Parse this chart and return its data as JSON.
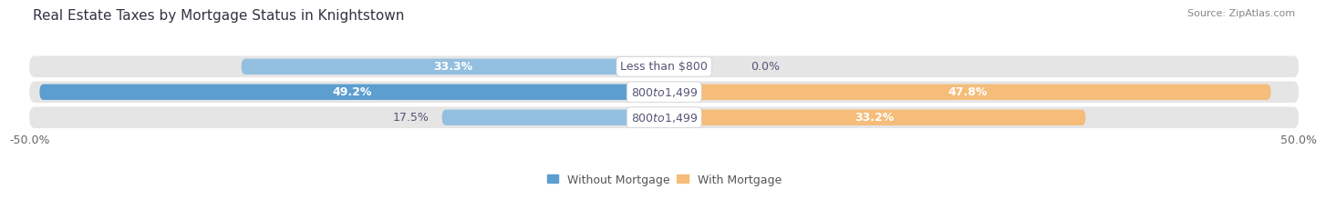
{
  "title": "Real Estate Taxes by Mortgage Status in Knightstown",
  "source": "Source: ZipAtlas.com",
  "categories": [
    "Less than $800",
    "$800 to $1,499",
    "$800 to $1,499"
  ],
  "without_mortgage": [
    33.3,
    49.2,
    17.5
  ],
  "with_mortgage": [
    0.0,
    47.8,
    33.2
  ],
  "xlim": [
    -50,
    50
  ],
  "xtick_left_val": -50.0,
  "xtick_right_val": 50.0,
  "xtick_left_label": "-50.0%",
  "xtick_right_label": "50.0%",
  "bar_height": 0.62,
  "blue_color_row0": "#93bfe0",
  "blue_color_row1": "#5b9ecf",
  "blue_color_row2": "#93bfe0",
  "orange_color": "#f5bd79",
  "bg_bar_color": "#e5e5e5",
  "title_fontsize": 11,
  "label_fontsize": 9,
  "pct_fontsize": 9,
  "tick_fontsize": 9,
  "source_fontsize": 8,
  "legend_fontsize": 9,
  "bg_color": "#ffffff",
  "text_color_dark": "#4a4a6a",
  "center_label_color": "#555577",
  "pct_label_outside_color": "#555577"
}
